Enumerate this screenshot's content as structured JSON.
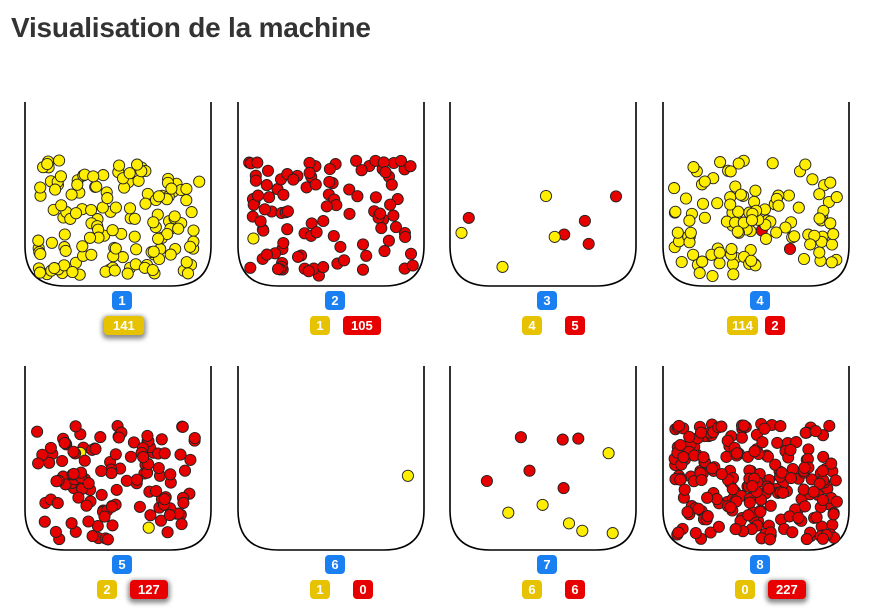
{
  "page": {
    "title": "Visualisation de la machine"
  },
  "colors": {
    "yellow_ball": "#ffee00",
    "red_ball": "#e60000",
    "id_badge": "#1a7ff0",
    "yellow_badge": "#e6c200",
    "red_badge": "#e80000"
  },
  "machines": [
    {
      "id": "1",
      "yellow": 141,
      "red": 0,
      "yellow_label": "141",
      "red_label": "",
      "glow": "yellow"
    },
    {
      "id": "2",
      "yellow": 1,
      "red": 105,
      "yellow_label": "1",
      "red_label": "105",
      "glow": ""
    },
    {
      "id": "3",
      "yellow": 4,
      "red": 5,
      "yellow_label": "4",
      "red_label": "5",
      "glow": ""
    },
    {
      "id": "4",
      "yellow": 114,
      "red": 2,
      "yellow_label": "114",
      "red_label": "2",
      "glow": ""
    },
    {
      "id": "5",
      "yellow": 2,
      "red": 127,
      "yellow_label": "2",
      "red_label": "127",
      "glow": "red"
    },
    {
      "id": "6",
      "yellow": 1,
      "red": 0,
      "yellow_label": "1",
      "red_label": "0",
      "glow": ""
    },
    {
      "id": "7",
      "yellow": 6,
      "red": 6,
      "yellow_label": "6",
      "red_label": "6",
      "glow": ""
    },
    {
      "id": "8",
      "yellow": 0,
      "red": 227,
      "yellow_label": "0",
      "red_label": "227",
      "glow": "red"
    }
  ]
}
